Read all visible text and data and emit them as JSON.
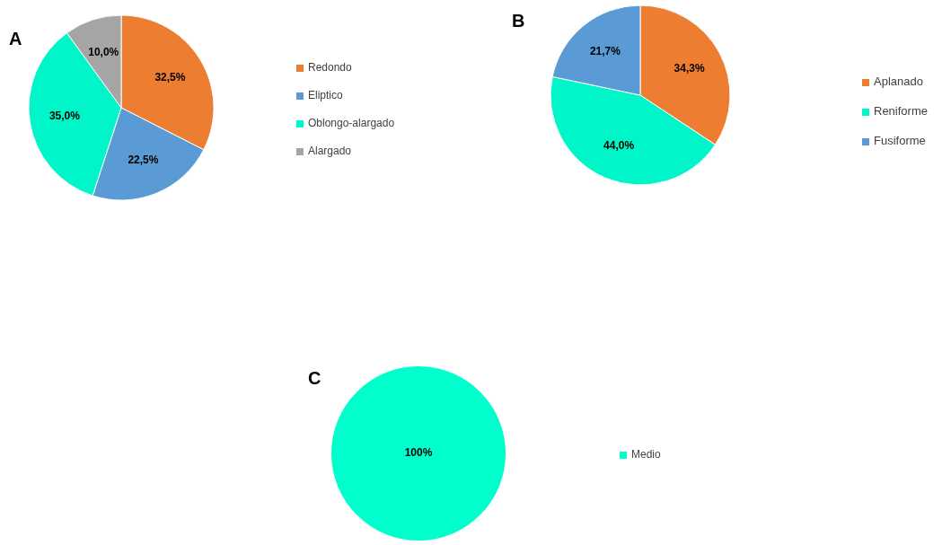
{
  "chart_data": [
    {
      "type": "pie",
      "title": "A",
      "categories": [
        "Redondo",
        "Eliptico",
        "Oblongo-alargado",
        "Alargado"
      ],
      "values": [
        32.5,
        22.5,
        35.0,
        10.0
      ],
      "colors": [
        "#ed7d31",
        "#5b9bd5",
        "#00f5c8",
        "#a5a5a5"
      ],
      "value_labels": [
        "32,5%",
        "22,5%",
        "35,0%",
        "10,0%"
      ],
      "legend": "right"
    },
    {
      "type": "pie",
      "title": "B",
      "categories": [
        "Aplanado",
        "Reniforme",
        "Fusiforme"
      ],
      "values": [
        34.3,
        44.0,
        21.7
      ],
      "colors": [
        "#ed7d31",
        "#00f5c8",
        "#5b9bd5"
      ],
      "value_labels": [
        "34,3%",
        "44,0%",
        "21,7%"
      ],
      "legend": "right"
    },
    {
      "type": "pie",
      "title": "C",
      "categories": [
        "Medio"
      ],
      "values": [
        100
      ],
      "colors": [
        "#00ffcc"
      ],
      "value_labels": [
        "100%"
      ],
      "legend": "right"
    }
  ]
}
